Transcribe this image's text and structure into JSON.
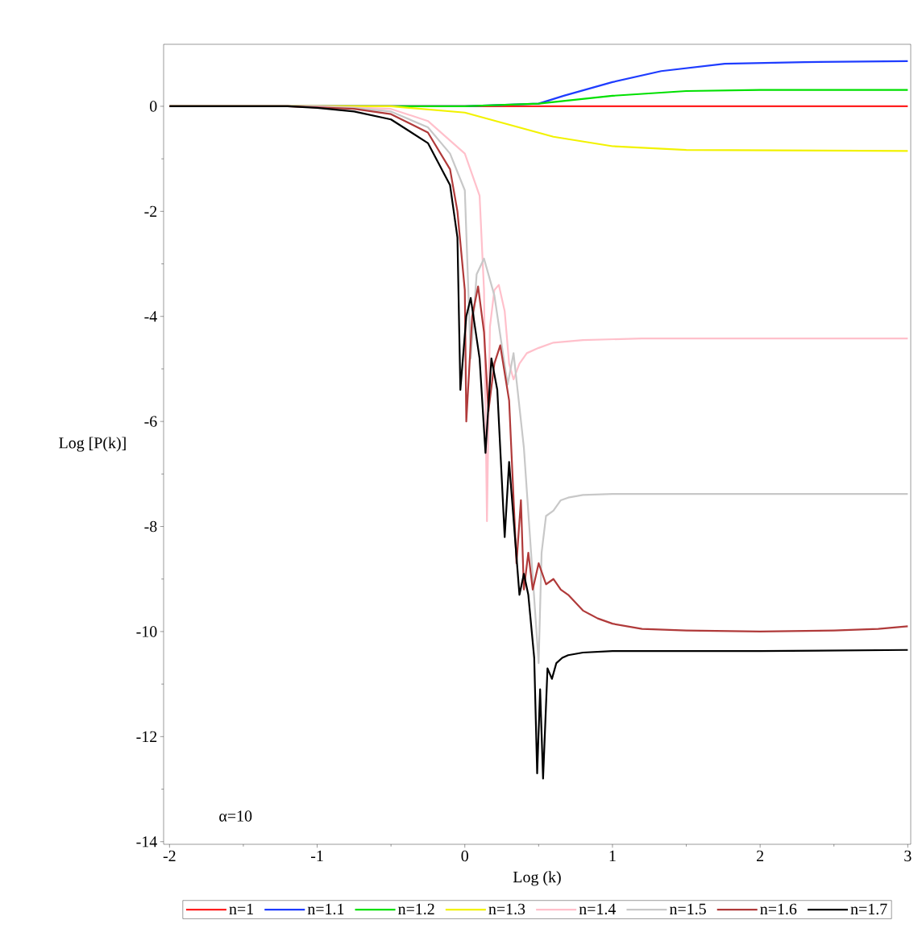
{
  "chart_data": {
    "type": "line",
    "xlabel": "Log (k)",
    "ylabel": "Log [P(k)]",
    "xlim": [
      -2.04,
      3.02
    ],
    "ylim": [
      -14.05,
      1.18
    ],
    "xticks": [
      -2,
      -1,
      0,
      1,
      2,
      3
    ],
    "yticks": [
      -14,
      -12,
      -10,
      -8,
      -6,
      -4,
      -2,
      0
    ],
    "legend": "bottom",
    "annotations": [
      "α=10"
    ],
    "series": [
      {
        "name": "n=1",
        "color": "#ff2020",
        "x": [
          -2,
          3
        ],
        "values": [
          0,
          0
        ]
      },
      {
        "name": "n=1.1",
        "color": "#1e3cff",
        "x": [
          -2,
          0,
          0.5,
          0.67,
          1.0,
          1.33,
          1.76,
          2.3,
          3
        ],
        "values": [
          0,
          0,
          0.05,
          0.2,
          0.46,
          0.67,
          0.81,
          0.84,
          0.86
        ]
      },
      {
        "name": "n=1.2",
        "color": "#00e000",
        "x": [
          -2,
          0,
          0.5,
          1.0,
          1.5,
          2,
          3
        ],
        "values": [
          0,
          0,
          0.05,
          0.2,
          0.29,
          0.31,
          0.31
        ]
      },
      {
        "name": "n=1.3",
        "color": "#f2f200",
        "x": [
          -2,
          -0.5,
          0,
          0.3,
          0.6,
          1.0,
          1.5,
          3
        ],
        "values": [
          0,
          0,
          -0.12,
          -0.35,
          -0.58,
          -0.76,
          -0.83,
          -0.85
        ]
      },
      {
        "name": "n=1.4",
        "color": "#ffc0cb",
        "x": [
          -2,
          -1,
          -0.5,
          -0.25,
          0,
          0.1,
          0.13,
          0.15,
          0.17,
          0.2,
          0.23,
          0.27,
          0.3,
          0.33,
          0.37,
          0.42,
          0.5,
          0.6,
          0.8,
          1.2,
          3
        ],
        "values": [
          0,
          0,
          -0.05,
          -0.28,
          -0.9,
          -1.7,
          -3.5,
          -7.9,
          -4.2,
          -3.5,
          -3.4,
          -3.9,
          -4.9,
          -5.2,
          -4.9,
          -4.7,
          -4.6,
          -4.5,
          -4.45,
          -4.42,
          -4.42
        ]
      },
      {
        "name": "n=1.5",
        "color": "#c8c8c8",
        "x": [
          -2,
          -1.2,
          -0.75,
          -0.5,
          -0.25,
          -0.1,
          0,
          0.04,
          0.08,
          0.13,
          0.2,
          0.29,
          0.33,
          0.4,
          0.5,
          0.52,
          0.55,
          0.6,
          0.65,
          0.7,
          0.8,
          1.0,
          3
        ],
        "values": [
          0,
          0,
          -0.03,
          -0.1,
          -0.4,
          -0.9,
          -1.6,
          -4.8,
          -3.2,
          -2.9,
          -3.6,
          -5.3,
          -4.7,
          -6.5,
          -10.6,
          -8.5,
          -7.8,
          -7.7,
          -7.5,
          -7.45,
          -7.4,
          -7.38,
          -7.38
        ]
      },
      {
        "name": "n=1.6",
        "color": "#b03a3a",
        "x": [
          -2,
          -1.2,
          -0.75,
          -0.5,
          -0.25,
          -0.1,
          -0.05,
          0,
          0.01,
          0.05,
          0.09,
          0.13,
          0.16,
          0.2,
          0.24,
          0.3,
          0.35,
          0.38,
          0.4,
          0.43,
          0.46,
          0.5,
          0.55,
          0.6,
          0.65,
          0.7,
          0.8,
          0.9,
          1.0,
          1.2,
          1.5,
          2,
          2.5,
          2.8,
          3
        ],
        "values": [
          0,
          0,
          -0.05,
          -0.15,
          -0.5,
          -1.2,
          -2,
          -3.5,
          -6.0,
          -4.0,
          -3.43,
          -4.3,
          -5.8,
          -4.9,
          -4.55,
          -5.6,
          -8.7,
          -7.5,
          -9.2,
          -8.5,
          -9.2,
          -8.7,
          -9.1,
          -9.0,
          -9.2,
          -9.3,
          -9.6,
          -9.75,
          -9.85,
          -9.95,
          -9.98,
          -10.0,
          -9.98,
          -9.95,
          -9.9
        ]
      },
      {
        "name": "n=1.7",
        "color": "#000000",
        "x": [
          -2,
          -1.2,
          -1,
          -0.75,
          -0.5,
          -0.25,
          -0.1,
          -0.05,
          -0.03,
          0.01,
          0.04,
          0.1,
          0.14,
          0.18,
          0.22,
          0.27,
          0.3,
          0.37,
          0.4,
          0.43,
          0.47,
          0.49,
          0.51,
          0.53,
          0.56,
          0.59,
          0.62,
          0.66,
          0.7,
          0.8,
          1.0,
          2,
          3
        ],
        "values": [
          0,
          0,
          -0.03,
          -0.1,
          -0.25,
          -0.7,
          -1.5,
          -2.5,
          -5.4,
          -4.0,
          -3.65,
          -4.8,
          -6.6,
          -4.8,
          -5.4,
          -8.2,
          -6.77,
          -9.3,
          -8.9,
          -9.3,
          -10.5,
          -12.7,
          -11.1,
          -12.8,
          -10.7,
          -10.9,
          -10.6,
          -10.5,
          -10.45,
          -10.4,
          -10.37,
          -10.37,
          -10.35
        ]
      }
    ]
  }
}
